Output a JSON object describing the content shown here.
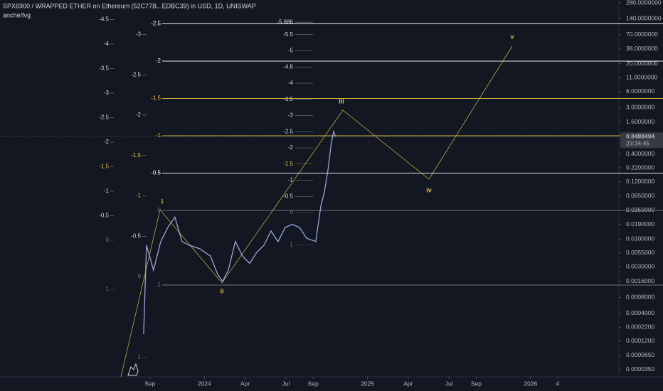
{
  "chart_data": {
    "type": "line",
    "title": "SPX6900 / WRAPPED ETHER on Ethereum (52C77B...EDBC39) in USD, 1D, UNISWAP",
    "subtitle": "anche/fvg",
    "log_scale": true,
    "color": "#9aa6d6",
    "x": [
      -0.47,
      -0.26,
      0.26,
      0.79,
      1.31,
      1.83,
      2.36,
      2.88,
      3.66,
      4.45,
      4.97,
      5.34,
      5.76,
      6.28,
      6.81,
      7.33,
      7.85,
      8.38,
      8.9,
      9.42,
      9.95,
      10.47,
      11,
      11.52,
      12.2,
      12.57,
      12.83,
      13.09,
      13.35,
      13.51,
      13.66
    ],
    "values": [
      0.000163,
      0.0077,
      0.0026,
      0.009,
      0.0166,
      0.026,
      0.009,
      0.0077,
      0.0066,
      0.0048,
      0.0022,
      0.0016,
      0.0026,
      0.009,
      0.0048,
      0.0035,
      0.0056,
      0.0077,
      0.0142,
      0.009,
      0.0166,
      0.019,
      0.0166,
      0.0104,
      0.009,
      0.042,
      0.077,
      0.195,
      0.67,
      1.06,
      0.8488494
    ],
    "last_price": 0.8488494,
    "countdown": "23:34:45",
    "xlim": [
      -2.4,
      34.5
    ],
    "ylim": [
      2.57e-05,
      316.6
    ],
    "xticks": [
      {
        "value": 0,
        "label": "Sep"
      },
      {
        "value": 4,
        "label": "2024"
      },
      {
        "value": 7,
        "label": "Apr"
      },
      {
        "value": 10,
        "label": "Jul"
      },
      {
        "value": 12,
        "label": "Sep"
      },
      {
        "value": 16,
        "label": "2025"
      },
      {
        "value": 19,
        "label": "Apr"
      },
      {
        "value": 22,
        "label": "Jul"
      },
      {
        "value": 24,
        "label": "Sep"
      },
      {
        "value": 28,
        "label": "2026"
      },
      {
        "value": 30,
        "label": "4"
      }
    ],
    "yticks": [
      {
        "value": 280,
        "label": "280.0000000"
      },
      {
        "value": 140,
        "label": "140.0000000"
      },
      {
        "value": 70,
        "label": "70.0000000"
      },
      {
        "value": 38,
        "label": "38.0000000"
      },
      {
        "value": 20,
        "label": "20.0000000"
      },
      {
        "value": 11,
        "label": "11.0000000"
      },
      {
        "value": 6,
        "label": "6.0000000"
      },
      {
        "value": 3,
        "label": "3.0000000"
      },
      {
        "value": 1.6,
        "label": "1.6000000"
      },
      {
        "value": 0.4,
        "label": "0.4000000"
      },
      {
        "value": 0.22,
        "label": "0.2200000"
      },
      {
        "value": 0.12,
        "label": "0.1200000"
      },
      {
        "value": 0.065,
        "label": "0.0650000"
      },
      {
        "value": 0.035,
        "label": "0.0350000"
      },
      {
        "value": 0.019,
        "label": "0.0190000"
      },
      {
        "value": 0.01,
        "label": "0.0100000"
      },
      {
        "value": 0.0055,
        "label": "0.0055000"
      },
      {
        "value": 0.003,
        "label": "0.0030000"
      },
      {
        "value": 0.0016,
        "label": "0.0016000"
      },
      {
        "value": 0.0008,
        "label": "0.0008000"
      },
      {
        "value": 0.0004,
        "label": "0.0004000"
      },
      {
        "value": 0.00022,
        "label": "0.0002200"
      },
      {
        "value": 0.00012,
        "label": "0.0001200"
      },
      {
        "value": 6.5e-05,
        "label": "0.0000650"
      },
      {
        "value": 3.5e-05,
        "label": "0.0000350"
      }
    ],
    "waves": [
      "i",
      "ii",
      "iii",
      "iv",
      "v"
    ],
    "fib_groups": [
      {
        "levels": [
          {
            "label": "-4.5",
            "color": "#d1d4dc"
          },
          {
            "label": "-4",
            "color": "#d1d4dc"
          },
          {
            "label": "-3.5",
            "color": "#d1d4dc"
          },
          {
            "label": "-3",
            "color": "#d1d4dc"
          },
          {
            "label": "-2.5",
            "color": "#d1d4dc"
          },
          {
            "label": "-2",
            "color": "#d1d4dc"
          },
          {
            "label": "-1.5",
            "color": "#e0c341"
          },
          {
            "label": "-1",
            "color": "#d1d4dc"
          },
          {
            "label": "-0.5",
            "color": "#d1d4dc"
          },
          {
            "label": "0",
            "color": "#787b86"
          },
          {
            "label": "1",
            "color": "#787b86"
          }
        ]
      },
      {
        "levels": [
          {
            "label": "-3",
            "color": "#d1d4dc"
          },
          {
            "label": "-2.5",
            "color": "#d1d4dc"
          },
          {
            "label": "-2",
            "color": "#d1d4dc"
          },
          {
            "label": "-1.5",
            "color": "#e0c341"
          },
          {
            "label": "-1",
            "color": "#e0c341"
          },
          {
            "label": "-0.5",
            "color": "#d1d4dc"
          },
          {
            "label": "0",
            "color": "#787b86"
          },
          {
            "label": "1",
            "color": "#787b86"
          }
        ]
      },
      {
        "levels": [
          {
            "label": "-5.886",
            "color": "#d1d4dc"
          },
          {
            "label": "-5.5",
            "color": "#d1d4dc"
          },
          {
            "label": "-5",
            "color": "#d1d4dc"
          },
          {
            "label": "-4.5",
            "color": "#d1d4dc"
          },
          {
            "label": "-4",
            "color": "#d1d4dc"
          },
          {
            "label": "-3.5",
            "color": "#d1d4dc"
          },
          {
            "label": "-3",
            "color": "#d1d4dc"
          },
          {
            "label": "-2.5",
            "color": "#d1d4dc"
          },
          {
            "label": "-2",
            "color": "#d1d4dc"
          },
          {
            "label": "-1.5",
            "color": "#e0c341"
          },
          {
            "label": "-1",
            "color": "#d1d4dc"
          },
          {
            "label": "-0.5",
            "color": "#d1d4dc"
          },
          {
            "label": "0",
            "color": "#787b86"
          },
          {
            "label": "1",
            "color": "#787b86"
          }
        ]
      },
      {
        "levels": [
          {
            "label": "-2.5",
            "color": "#ffffff"
          },
          {
            "label": "-2",
            "color": "#ffffff"
          },
          {
            "label": "-1.5",
            "color": "#e0c341"
          },
          {
            "label": "-1",
            "color": "#e0c341"
          },
          {
            "label": "-0.5",
            "color": "#ffffff"
          },
          {
            "label": "0",
            "color": "#787b86"
          },
          {
            "label": "1",
            "color": "#787b86"
          }
        ]
      }
    ]
  }
}
